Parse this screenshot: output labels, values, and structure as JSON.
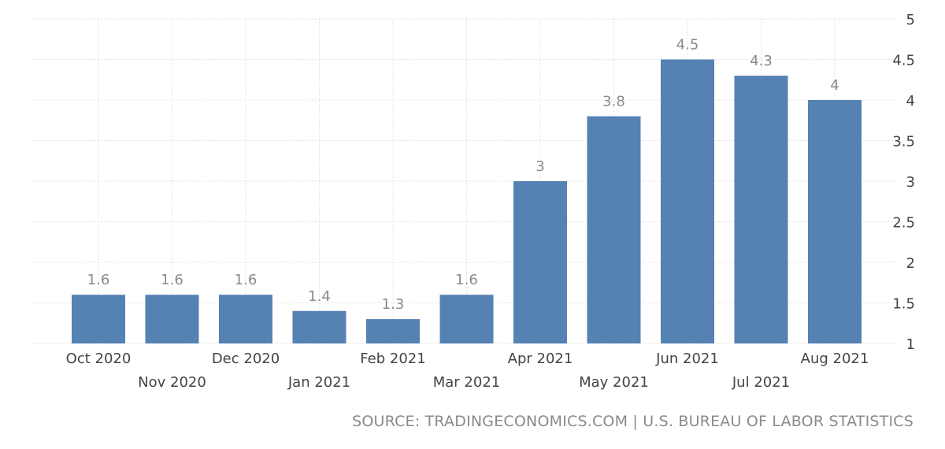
{
  "chart_data": {
    "type": "bar",
    "categories": [
      "Oct 2020",
      "Nov 2020",
      "Dec 2020",
      "Jan 2021",
      "Feb 2021",
      "Mar 2021",
      "Apr 2021",
      "May 2021",
      "Jun 2021",
      "Jul 2021",
      "Aug 2021"
    ],
    "values": [
      1.6,
      1.6,
      1.6,
      1.4,
      1.3,
      1.6,
      3,
      3.8,
      4.5,
      4.3,
      4
    ],
    "value_labels": [
      "1.6",
      "1.6",
      "1.6",
      "1.4",
      "1.3",
      "1.6",
      "3",
      "3.8",
      "4.5",
      "4.3",
      "4"
    ],
    "ylim": [
      1,
      5
    ],
    "y_ticks": [
      "1",
      "1.5",
      "2",
      "2.5",
      "3",
      "3.5",
      "4",
      "4.5",
      "5"
    ],
    "y_axis_position": "right",
    "grid": true,
    "legend": false,
    "title": "",
    "xlabel": "",
    "ylabel": "",
    "bar_color": "#5581b3",
    "label_color": "#8a8a8a",
    "tick_color": "#444444",
    "grid_color": "#e3e3e3"
  },
  "source": "SOURCE: TRADINGECONOMICS.COM | U.S. BUREAU OF LABOR STATISTICS"
}
